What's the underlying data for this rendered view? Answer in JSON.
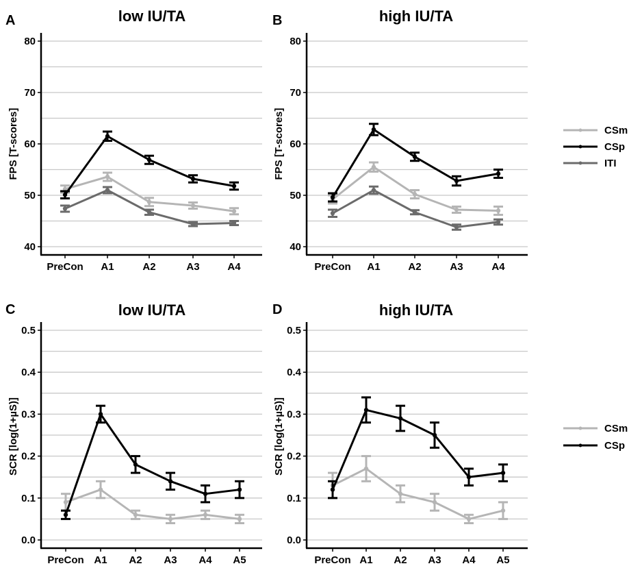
{
  "colors": {
    "CSm": "#b5b5b5",
    "CSp": "#000000",
    "ITI": "#6b6b6b",
    "grid": "#c8c8c8"
  },
  "legends": [
    {
      "entries": [
        "CSm",
        "CSp",
        "ITI"
      ]
    },
    {
      "entries": [
        "CSm",
        "CSp"
      ]
    }
  ],
  "chart_data": [
    {
      "panel": "A",
      "title": "low IU/TA",
      "type": "line",
      "ylabel": "FPS [T-scores]",
      "ylim": [
        40,
        80
      ],
      "yticks": [
        40,
        50,
        60,
        70,
        80
      ],
      "categories": [
        "PreCon",
        "A1",
        "A2",
        "A3",
        "A4"
      ],
      "grid": true,
      "series": [
        {
          "name": "CSm",
          "values": [
            51.2,
            53.6,
            48.7,
            48.0,
            46.9
          ],
          "err": [
            0.7,
            0.8,
            0.8,
            0.6,
            0.6
          ]
        },
        {
          "name": "CSp",
          "values": [
            50.1,
            61.5,
            56.9,
            53.2,
            51.8
          ],
          "err": [
            0.7,
            0.9,
            0.8,
            0.7,
            0.7
          ]
        },
        {
          "name": "ITI",
          "values": [
            47.4,
            51.0,
            46.7,
            44.4,
            44.6
          ],
          "err": [
            0.6,
            0.6,
            0.5,
            0.4,
            0.4
          ]
        }
      ]
    },
    {
      "panel": "B",
      "title": "high IU/TA",
      "type": "line",
      "ylabel": "FPS [T-scores]",
      "ylim": [
        40,
        80
      ],
      "yticks": [
        40,
        50,
        60,
        70,
        80
      ],
      "categories": [
        "PreCon",
        "A1",
        "A2",
        "A3",
        "A4"
      ],
      "grid": true,
      "series": [
        {
          "name": "CSm",
          "values": [
            49.2,
            55.5,
            50.2,
            47.2,
            47.0
          ],
          "err": [
            0.8,
            0.9,
            0.8,
            0.6,
            0.8
          ]
        },
        {
          "name": "CSp",
          "values": [
            49.6,
            62.8,
            57.5,
            52.8,
            54.2
          ],
          "err": [
            0.8,
            1.1,
            0.8,
            0.9,
            0.8
          ]
        },
        {
          "name": "ITI",
          "values": [
            46.5,
            51.0,
            46.7,
            43.8,
            44.8
          ],
          "err": [
            0.7,
            0.7,
            0.4,
            0.5,
            0.5
          ]
        }
      ]
    },
    {
      "panel": "C",
      "title": "low IU/TA",
      "type": "line",
      "ylabel": "SCR [log(1+µS)]",
      "ylim": [
        0,
        0.5
      ],
      "yticks": [
        0.0,
        0.1,
        0.2,
        0.3,
        0.4,
        0.5
      ],
      "categories": [
        "PreCon",
        "A1",
        "A2",
        "A3",
        "A4",
        "A5"
      ],
      "grid": true,
      "series": [
        {
          "name": "CSm",
          "values": [
            0.09,
            0.12,
            0.06,
            0.05,
            0.06,
            0.05
          ],
          "err": [
            0.02,
            0.02,
            0.01,
            0.01,
            0.01,
            0.01
          ]
        },
        {
          "name": "CSp",
          "values": [
            0.06,
            0.3,
            0.18,
            0.14,
            0.11,
            0.12
          ],
          "err": [
            0.01,
            0.02,
            0.02,
            0.02,
            0.02,
            0.02
          ]
        }
      ]
    },
    {
      "panel": "D",
      "title": "high IU/TA",
      "type": "line",
      "ylabel": "SCR [log(1+µS)]",
      "ylim": [
        0,
        0.5
      ],
      "yticks": [
        0.0,
        0.1,
        0.2,
        0.3,
        0.4,
        0.5
      ],
      "categories": [
        "PreCon",
        "A1",
        "A2",
        "A3",
        "A4",
        "A5"
      ],
      "grid": true,
      "series": [
        {
          "name": "CSm",
          "values": [
            0.13,
            0.17,
            0.11,
            0.09,
            0.05,
            0.07
          ],
          "err": [
            0.03,
            0.03,
            0.02,
            0.02,
            0.01,
            0.02
          ]
        },
        {
          "name": "CSp",
          "values": [
            0.12,
            0.31,
            0.29,
            0.25,
            0.15,
            0.16
          ],
          "err": [
            0.02,
            0.03,
            0.03,
            0.03,
            0.02,
            0.02
          ]
        }
      ]
    }
  ]
}
